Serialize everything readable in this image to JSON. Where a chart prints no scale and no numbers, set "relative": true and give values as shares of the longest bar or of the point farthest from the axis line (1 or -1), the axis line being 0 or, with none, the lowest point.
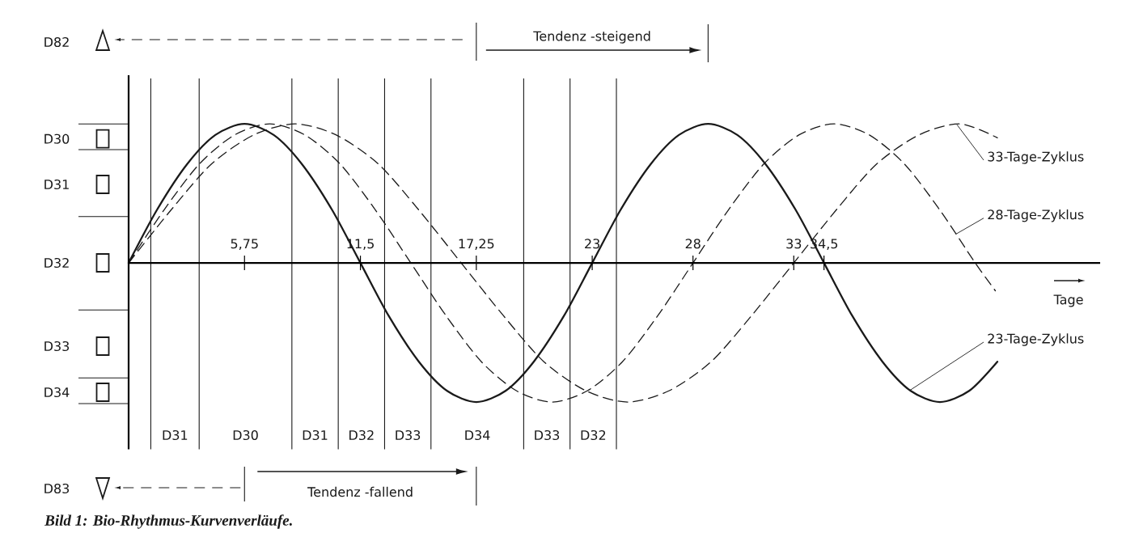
{
  "chart_data": {
    "type": "line",
    "relative": true,
    "xlabel": "Tage",
    "xlim": [
      0,
      48.2
    ],
    "xticks": [
      {
        "value": 5.75,
        "label": "5,75"
      },
      {
        "value": 11.5,
        "label": "11,5"
      },
      {
        "value": 17.25,
        "label": "17,25"
      },
      23,
      28,
      33,
      {
        "value": 34.5,
        "label": "34,5"
      }
    ],
    "series": [
      {
        "name": "23-Tage-Zyklus",
        "color": "#1a1a1a",
        "line_style": "solid",
        "x": [
          0,
          1.4,
          2.9,
          4.3,
          5.75,
          7.2,
          8.6,
          10.1,
          11.5,
          12.9,
          14.4,
          15.8,
          17.25,
          18.7,
          20.1,
          21.6,
          23,
          24.4,
          25.9,
          27.3,
          28.75,
          30.2,
          31.6,
          33.1,
          34.5,
          35.9,
          37.4,
          38.8,
          40.25,
          41.7,
          43.1
        ],
        "values": [
          0,
          0.38,
          0.71,
          0.92,
          1,
          0.92,
          0.71,
          0.38,
          0,
          -0.38,
          -0.71,
          -0.92,
          -1,
          -0.92,
          -0.71,
          -0.38,
          0,
          0.38,
          0.71,
          0.92,
          1,
          0.92,
          0.71,
          0.38,
          0,
          -0.38,
          -0.71,
          -0.92,
          -1,
          -0.92,
          -0.71
        ]
      },
      {
        "name": "28-Tage-Zyklus",
        "color": "#1a1a1a",
        "line_style": "dashed",
        "x": [
          0,
          1.75,
          3.5,
          5.25,
          7,
          8.75,
          10.5,
          12.25,
          14,
          15.75,
          17.5,
          19.25,
          21,
          22.75,
          24.5,
          26.25,
          28,
          29.75,
          31.5,
          33.25,
          35,
          36.75,
          38.5,
          40.25,
          42,
          43
        ],
        "values": [
          0,
          0.38,
          0.71,
          0.92,
          1,
          0.92,
          0.71,
          0.38,
          0,
          -0.38,
          -0.71,
          -0.92,
          -1,
          -0.92,
          -0.71,
          -0.38,
          0,
          0.38,
          0.71,
          0.92,
          1,
          0.92,
          0.71,
          0.38,
          0,
          -0.2
        ]
      },
      {
        "name": "33-Tage-Zyklus",
        "color": "#1a1a1a",
        "line_style": "dashed",
        "x": [
          0,
          2.1,
          4.1,
          6.2,
          8.25,
          10.3,
          12.4,
          14.4,
          16.5,
          18.6,
          20.6,
          22.7,
          24.75,
          26.8,
          28.9,
          30.9,
          33,
          35.1,
          37.1,
          39.2,
          41.25,
          43.1
        ],
        "values": [
          0,
          0.38,
          0.71,
          0.92,
          1,
          0.92,
          0.71,
          0.38,
          0,
          -0.38,
          -0.71,
          -0.92,
          -1,
          -0.92,
          -0.71,
          -0.38,
          0,
          0.38,
          0.71,
          0.92,
          1,
          0.9
        ]
      }
    ],
    "ref_lines": [
      {
        "axis": "x",
        "value": 1.1
      },
      {
        "axis": "x",
        "value": 3.5
      },
      {
        "axis": "x",
        "value": 8.1
      },
      {
        "axis": "x",
        "value": 10.4
      },
      {
        "axis": "x",
        "value": 12.7
      },
      {
        "axis": "x",
        "value": 15.0
      },
      {
        "axis": "x",
        "value": 19.6
      },
      {
        "axis": "x",
        "value": 21.9
      },
      {
        "axis": "x",
        "value": 24.2
      }
    ],
    "annotations": [
      "D82",
      "Tendenz -steigend",
      "D83",
      "Tendenz -fallend",
      "Bild 1: Bio-Rhythmus-Kurvenverläufe.",
      "D30",
      "D31",
      "D32",
      "D33",
      "D34",
      "D31",
      "D30",
      "D31",
      "D32",
      "D33",
      "D34",
      "D33",
      "D32"
    ]
  }
}
